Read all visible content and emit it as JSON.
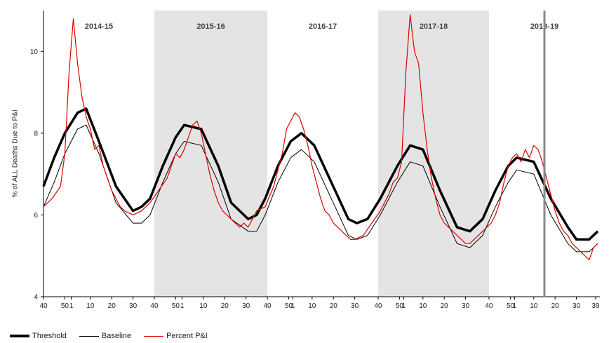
{
  "chart_data": {
    "type": "line",
    "ylabel": "% of ALL Deaths Due to P&I",
    "xlabel": "",
    "ylim": [
      4,
      11
    ],
    "yticks": [
      4,
      6,
      8,
      10
    ],
    "seasons": [
      {
        "label": "2014-15",
        "shaded": false,
        "start_week": 0,
        "end_week": 52
      },
      {
        "label": "2015-16",
        "shaded": true,
        "start_week": 52,
        "end_week": 105
      },
      {
        "label": "2016-17",
        "shaded": false,
        "start_week": 105,
        "end_week": 157
      },
      {
        "label": "2017-18",
        "shaded": true,
        "start_week": 157,
        "end_week": 209
      },
      {
        "label": "2018-19",
        "shaded": false,
        "start_week": 209,
        "end_week": 261
      }
    ],
    "current_week_marker": 235,
    "x_tick_labels": [
      {
        "w": 0,
        "label": "40"
      },
      {
        "w": 10,
        "label": "50"
      },
      {
        "w": 13,
        "label": "1"
      },
      {
        "w": 22,
        "label": "10"
      },
      {
        "w": 32,
        "label": "20"
      },
      {
        "w": 42,
        "label": "30"
      },
      {
        "w": 52,
        "label": "40"
      },
      {
        "w": 62,
        "label": "50"
      },
      {
        "w": 65,
        "label": "1"
      },
      {
        "w": 75,
        "label": "10"
      },
      {
        "w": 85,
        "label": "20"
      },
      {
        "w": 95,
        "label": "30"
      },
      {
        "w": 105,
        "label": "40"
      },
      {
        "w": 115,
        "label": "50"
      },
      {
        "w": 117,
        "label": "1"
      },
      {
        "w": 126,
        "label": "10"
      },
      {
        "w": 136,
        "label": "20"
      },
      {
        "w": 146,
        "label": "30"
      },
      {
        "w": 157,
        "label": "40"
      },
      {
        "w": 167,
        "label": "50"
      },
      {
        "w": 169,
        "label": "1"
      },
      {
        "w": 178,
        "label": "10"
      },
      {
        "w": 188,
        "label": "20"
      },
      {
        "w": 198,
        "label": "30"
      },
      {
        "w": 209,
        "label": "40"
      },
      {
        "w": 219,
        "label": "50"
      },
      {
        "w": 221,
        "label": "1"
      },
      {
        "w": 230,
        "label": "10"
      },
      {
        "w": 240,
        "label": "20"
      },
      {
        "w": 250,
        "label": "30"
      },
      {
        "w": 259,
        "label": "39"
      }
    ],
    "series": [
      {
        "name": "Threshold",
        "color": "#000000",
        "points": [
          [
            0,
            6.7
          ],
          [
            5,
            7.4
          ],
          [
            10,
            8.0
          ],
          [
            16,
            8.5
          ],
          [
            20,
            8.6
          ],
          [
            26,
            7.8
          ],
          [
            34,
            6.7
          ],
          [
            42,
            6.1
          ],
          [
            46,
            6.2
          ],
          [
            50,
            6.4
          ],
          [
            56,
            7.2
          ],
          [
            62,
            7.9
          ],
          [
            66,
            8.2
          ],
          [
            74,
            8.1
          ],
          [
            82,
            7.2
          ],
          [
            88,
            6.3
          ],
          [
            96,
            5.9
          ],
          [
            100,
            6.0
          ],
          [
            104,
            6.4
          ],
          [
            110,
            7.2
          ],
          [
            116,
            7.8
          ],
          [
            121,
            8.0
          ],
          [
            127,
            7.7
          ],
          [
            135,
            6.8
          ],
          [
            143,
            5.9
          ],
          [
            147,
            5.8
          ],
          [
            152,
            5.9
          ],
          [
            158,
            6.4
          ],
          [
            166,
            7.2
          ],
          [
            172,
            7.7
          ],
          [
            178,
            7.6
          ],
          [
            186,
            6.6
          ],
          [
            194,
            5.7
          ],
          [
            200,
            5.6
          ],
          [
            206,
            5.9
          ],
          [
            212,
            6.6
          ],
          [
            218,
            7.2
          ],
          [
            222,
            7.4
          ],
          [
            230,
            7.3
          ],
          [
            238,
            6.4
          ],
          [
            246,
            5.7
          ],
          [
            250,
            5.4
          ],
          [
            256,
            5.4
          ],
          [
            260,
            5.6
          ]
        ]
      },
      {
        "name": "Baseline",
        "color": "#000000",
        "points": [
          [
            0,
            6.2
          ],
          [
            5,
            6.8
          ],
          [
            10,
            7.5
          ],
          [
            16,
            8.1
          ],
          [
            20,
            8.2
          ],
          [
            26,
            7.5
          ],
          [
            34,
            6.3
          ],
          [
            42,
            5.8
          ],
          [
            46,
            5.8
          ],
          [
            50,
            6.0
          ],
          [
            56,
            6.8
          ],
          [
            62,
            7.5
          ],
          [
            66,
            7.8
          ],
          [
            74,
            7.7
          ],
          [
            82,
            6.8
          ],
          [
            88,
            5.9
          ],
          [
            96,
            5.6
          ],
          [
            100,
            5.6
          ],
          [
            104,
            6.0
          ],
          [
            110,
            6.8
          ],
          [
            116,
            7.4
          ],
          [
            121,
            7.6
          ],
          [
            127,
            7.3
          ],
          [
            135,
            6.4
          ],
          [
            143,
            5.5
          ],
          [
            147,
            5.4
          ],
          [
            152,
            5.5
          ],
          [
            158,
            6.0
          ],
          [
            166,
            6.8
          ],
          [
            172,
            7.3
          ],
          [
            178,
            7.2
          ],
          [
            186,
            6.2
          ],
          [
            194,
            5.3
          ],
          [
            200,
            5.2
          ],
          [
            206,
            5.5
          ],
          [
            212,
            6.2
          ],
          [
            218,
            6.8
          ],
          [
            222,
            7.1
          ],
          [
            230,
            7.0
          ],
          [
            238,
            6.0
          ],
          [
            246,
            5.3
          ],
          [
            250,
            5.1
          ],
          [
            256,
            5.1
          ],
          [
            260,
            5.3
          ]
        ]
      },
      {
        "name": "Percent P&I",
        "color": "#e00000",
        "points": [
          [
            0,
            6.2
          ],
          [
            4,
            6.4
          ],
          [
            8,
            6.7
          ],
          [
            10,
            7.5
          ],
          [
            12,
            9.5
          ],
          [
            14,
            10.8
          ],
          [
            16,
            9.7
          ],
          [
            18,
            8.9
          ],
          [
            20,
            8.4
          ],
          [
            22,
            8.1
          ],
          [
            24,
            7.6
          ],
          [
            26,
            7.7
          ],
          [
            28,
            7.2
          ],
          [
            30,
            6.9
          ],
          [
            32,
            6.6
          ],
          [
            34,
            6.4
          ],
          [
            36,
            6.2
          ],
          [
            38,
            6.1
          ],
          [
            42,
            6.0
          ],
          [
            46,
            6.1
          ],
          [
            50,
            6.3
          ],
          [
            54,
            6.6
          ],
          [
            58,
            6.9
          ],
          [
            62,
            7.5
          ],
          [
            64,
            7.4
          ],
          [
            66,
            7.6
          ],
          [
            68,
            7.9
          ],
          [
            70,
            8.2
          ],
          [
            72,
            8.3
          ],
          [
            74,
            8.0
          ],
          [
            76,
            7.5
          ],
          [
            78,
            7.0
          ],
          [
            80,
            6.6
          ],
          [
            82,
            6.3
          ],
          [
            84,
            6.1
          ],
          [
            86,
            6.0
          ],
          [
            88,
            5.9
          ],
          [
            90,
            5.8
          ],
          [
            92,
            5.7
          ],
          [
            94,
            5.8
          ],
          [
            96,
            5.7
          ],
          [
            98,
            5.9
          ],
          [
            100,
            6.1
          ],
          [
            104,
            6.2
          ],
          [
            108,
            6.7
          ],
          [
            112,
            7.5
          ],
          [
            114,
            8.1
          ],
          [
            116,
            8.3
          ],
          [
            118,
            8.5
          ],
          [
            120,
            8.4
          ],
          [
            122,
            8.1
          ],
          [
            124,
            7.7
          ],
          [
            126,
            7.2
          ],
          [
            128,
            6.8
          ],
          [
            130,
            6.4
          ],
          [
            132,
            6.1
          ],
          [
            134,
            6.0
          ],
          [
            136,
            5.8
          ],
          [
            138,
            5.7
          ],
          [
            140,
            5.6
          ],
          [
            142,
            5.5
          ],
          [
            144,
            5.4
          ],
          [
            146,
            5.4
          ],
          [
            150,
            5.5
          ],
          [
            154,
            5.8
          ],
          [
            158,
            6.1
          ],
          [
            160,
            6.3
          ],
          [
            162,
            6.5
          ],
          [
            164,
            6.8
          ],
          [
            166,
            6.9
          ],
          [
            168,
            7.3
          ],
          [
            170,
            9.5
          ],
          [
            172,
            10.9
          ],
          [
            174,
            10.0
          ],
          [
            176,
            9.7
          ],
          [
            178,
            8.5
          ],
          [
            180,
            7.6
          ],
          [
            182,
            6.9
          ],
          [
            184,
            6.4
          ],
          [
            186,
            6.0
          ],
          [
            188,
            5.8
          ],
          [
            190,
            5.7
          ],
          [
            192,
            5.6
          ],
          [
            194,
            5.5
          ],
          [
            196,
            5.4
          ],
          [
            198,
            5.3
          ],
          [
            200,
            5.3
          ],
          [
            202,
            5.4
          ],
          [
            204,
            5.5
          ],
          [
            206,
            5.6
          ],
          [
            208,
            5.7
          ],
          [
            210,
            5.8
          ],
          [
            212,
            6.0
          ],
          [
            214,
            6.3
          ],
          [
            216,
            6.8
          ],
          [
            218,
            7.2
          ],
          [
            220,
            7.4
          ],
          [
            222,
            7.5
          ],
          [
            224,
            7.3
          ],
          [
            226,
            7.6
          ],
          [
            228,
            7.4
          ],
          [
            230,
            7.7
          ],
          [
            232,
            7.6
          ],
          [
            234,
            7.3
          ],
          [
            236,
            6.9
          ],
          [
            238,
            6.5
          ],
          [
            240,
            6.1
          ],
          [
            242,
            5.8
          ],
          [
            244,
            5.6
          ],
          [
            246,
            5.5
          ],
          [
            248,
            5.3
          ],
          [
            250,
            5.2
          ],
          [
            252,
            5.1
          ],
          [
            254,
            5.0
          ],
          [
            256,
            4.9
          ],
          [
            258,
            5.2
          ],
          [
            260,
            5.3
          ]
        ]
      }
    ]
  }
}
